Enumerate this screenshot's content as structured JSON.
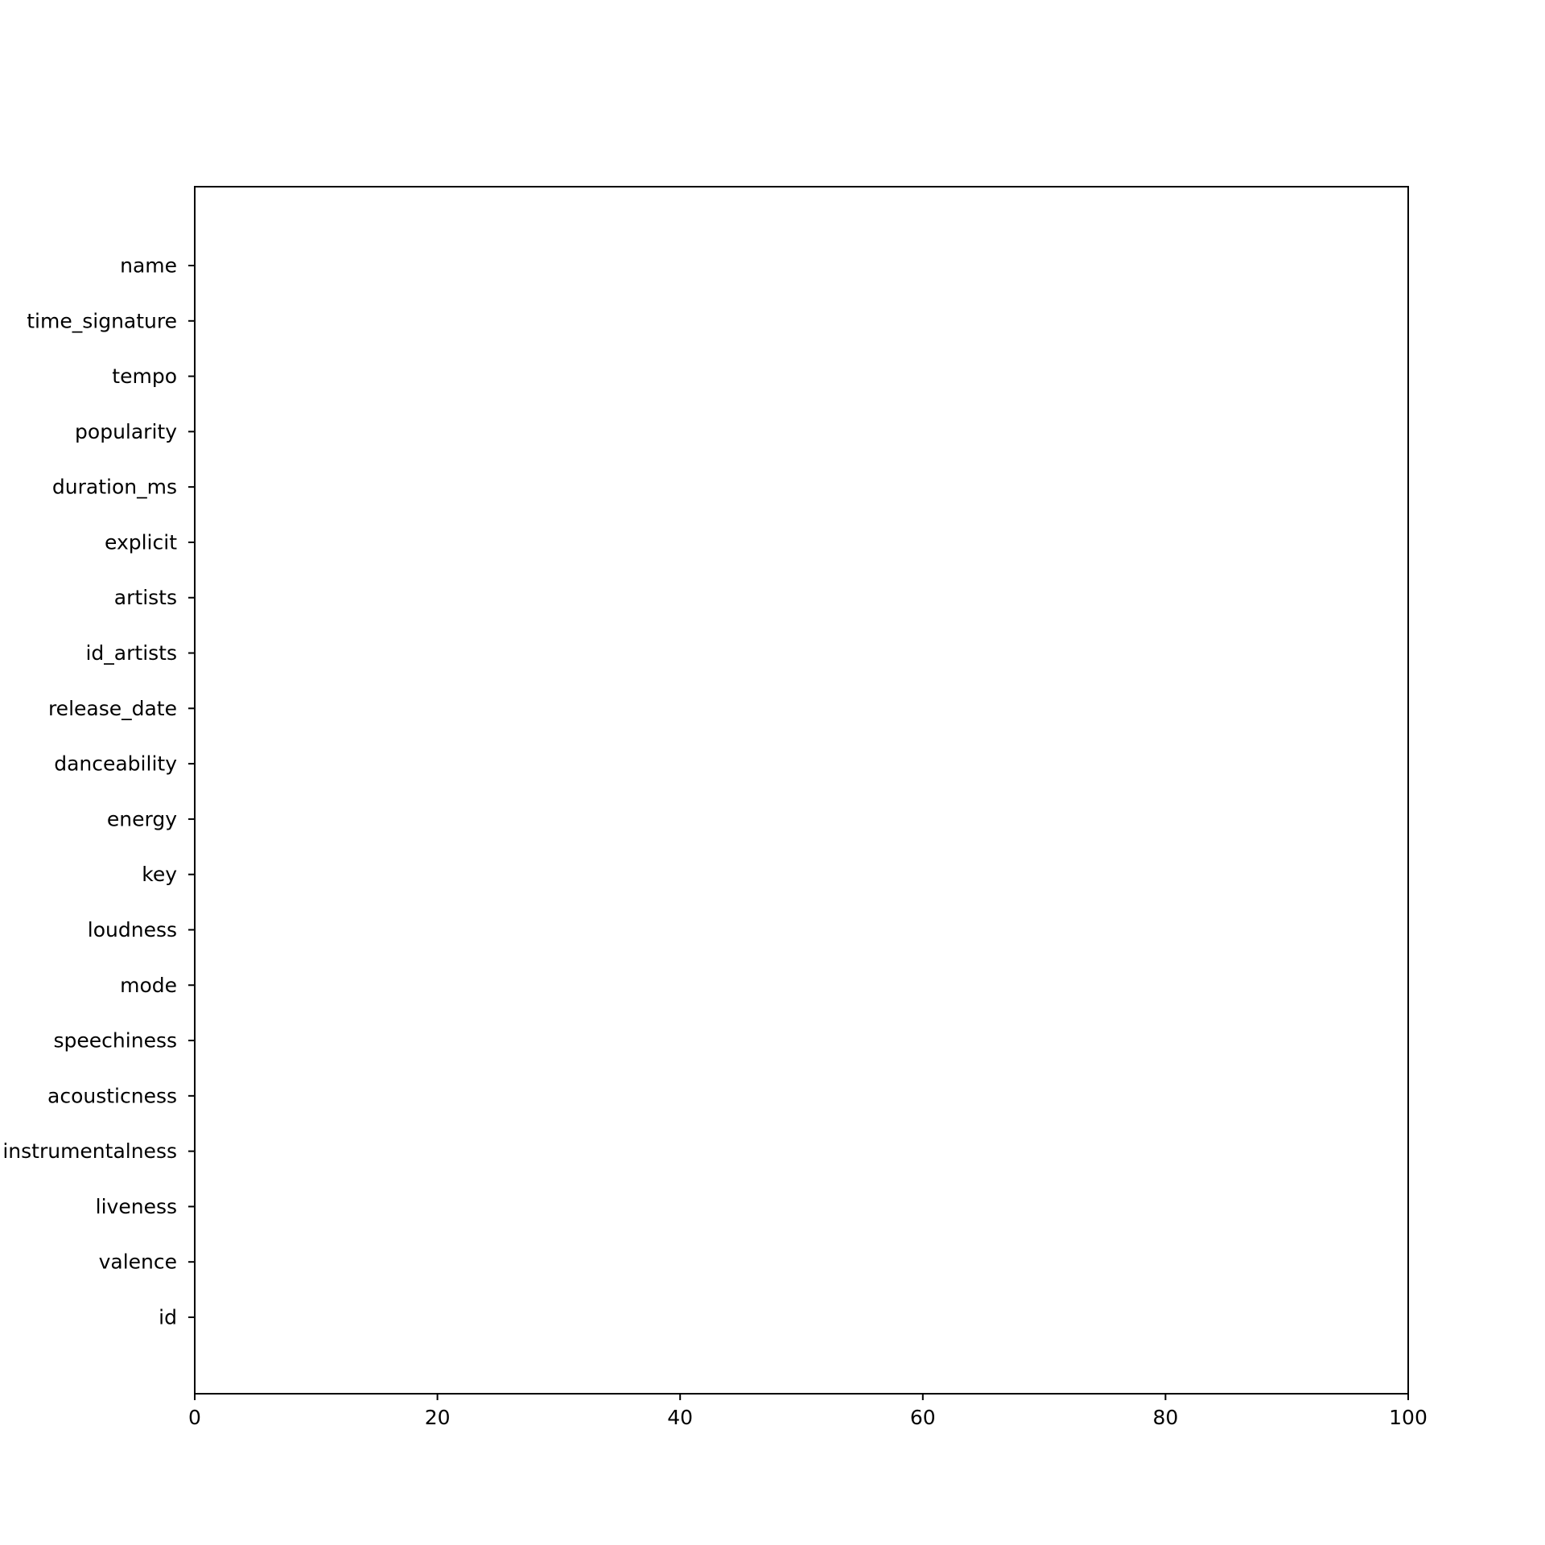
{
  "chart_data": {
    "type": "bar",
    "orientation": "horizontal",
    "categories": [
      "name",
      "time_signature",
      "tempo",
      "popularity",
      "duration_ms",
      "explicit",
      "artists",
      "id_artists",
      "release_date",
      "danceability",
      "energy",
      "key",
      "loudness",
      "mode",
      "speechiness",
      "acousticness",
      "instrumentalness",
      "liveness",
      "valence",
      "id"
    ],
    "values": [
      0,
      0,
      0,
      0,
      0,
      0,
      0,
      0,
      0,
      0,
      0,
      0,
      0,
      0,
      0,
      0,
      0,
      0,
      0,
      0
    ],
    "title": "",
    "xlabel": "",
    "ylabel": "",
    "xlim": [
      0,
      100
    ],
    "xticks": [
      "0",
      "20",
      "40",
      "60",
      "80",
      "100"
    ],
    "grid": false,
    "colors": {
      "axis": "#000000",
      "bar": "#1f77b4",
      "background": "#ffffff"
    }
  }
}
